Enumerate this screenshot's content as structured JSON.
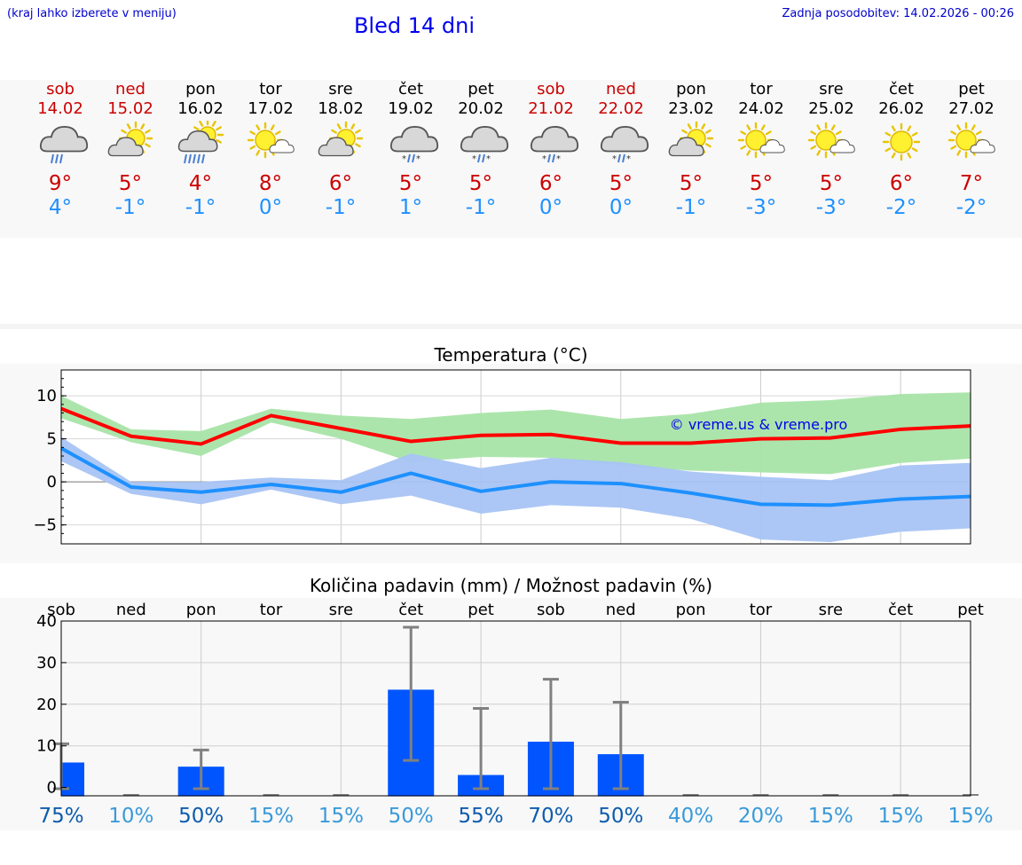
{
  "header": {
    "hint": "(kraj lahko izberete v meniju)",
    "title": "Bled 14 dni",
    "updated": "Zadnja posodobitev: 14.02.2026 - 00:26"
  },
  "days": [
    {
      "name": "sob",
      "date": "14.02",
      "weekend": true,
      "icon": "cloud-rain-icon",
      "tmax": "9°",
      "tmin": "4°"
    },
    {
      "name": "ned",
      "date": "15.02",
      "weekend": true,
      "icon": "sun-cloud-icon",
      "tmax": "5°",
      "tmin": "-1°"
    },
    {
      "name": "pon",
      "date": "16.02",
      "weekend": false,
      "icon": "sun-cloud-rain-icon",
      "tmax": "4°",
      "tmin": "-1°"
    },
    {
      "name": "tor",
      "date": "17.02",
      "weekend": false,
      "icon": "sun-small-cloud-icon",
      "tmax": "8°",
      "tmin": "0°"
    },
    {
      "name": "sre",
      "date": "18.02",
      "weekend": false,
      "icon": "sun-cloud-icon",
      "tmax": "6°",
      "tmin": "-1°"
    },
    {
      "name": "čet",
      "date": "19.02",
      "weekend": false,
      "icon": "cloud-sleet-icon",
      "tmax": "5°",
      "tmin": "1°"
    },
    {
      "name": "pet",
      "date": "20.02",
      "weekend": false,
      "icon": "cloud-sleet-icon",
      "tmax": "5°",
      "tmin": "-1°"
    },
    {
      "name": "sob",
      "date": "21.02",
      "weekend": true,
      "icon": "cloud-sleet-icon",
      "tmax": "6°",
      "tmin": "0°"
    },
    {
      "name": "ned",
      "date": "22.02",
      "weekend": true,
      "icon": "cloud-sleet-icon",
      "tmax": "5°",
      "tmin": "0°"
    },
    {
      "name": "pon",
      "date": "23.02",
      "weekend": false,
      "icon": "sun-cloud-icon",
      "tmax": "5°",
      "tmin": "-1°"
    },
    {
      "name": "tor",
      "date": "24.02",
      "weekend": false,
      "icon": "sun-small-cloud-icon",
      "tmax": "5°",
      "tmin": "-3°"
    },
    {
      "name": "sre",
      "date": "25.02",
      "weekend": false,
      "icon": "sun-small-cloud-icon",
      "tmax": "5°",
      "tmin": "-3°"
    },
    {
      "name": "čet",
      "date": "26.02",
      "weekend": false,
      "icon": "sun-icon",
      "tmax": "6°",
      "tmin": "-2°"
    },
    {
      "name": "pet",
      "date": "27.02",
      "weekend": false,
      "icon": "sun-small-cloud-icon",
      "tmax": "7°",
      "tmin": "-2°"
    }
  ],
  "colors": {
    "weekend": "#cc0000",
    "tmax": "#cc0000",
    "tmin": "#1e90ff",
    "max_line": "#ff0000",
    "max_band": "#a8e4a8",
    "min_line": "#1e90ff",
    "min_band": "#a8c4f4",
    "bar": "#0055ff",
    "error": "#808080",
    "prob_dark": "#0d5cad",
    "prob_light": "#3a9ad9"
  },
  "chart_data": [
    {
      "type": "line",
      "title": "Temperatura (°C)",
      "watermark": "© vreme.us & vreme.pro",
      "ylim": [
        -7.2,
        13
      ],
      "yticks": [
        10,
        5,
        0,
        -5
      ],
      "ytick_labels": [
        "10",
        "5",
        "0",
        "−5"
      ],
      "x": [
        0,
        1,
        2,
        3,
        4,
        5,
        6,
        7,
        8,
        9,
        10,
        11,
        12,
        13
      ],
      "series": [
        {
          "name": "max",
          "values": [
            8.5,
            5.3,
            4.4,
            7.7,
            6.2,
            4.7,
            5.4,
            5.5,
            4.5,
            4.5,
            5.0,
            5.1,
            6.1,
            6.5
          ],
          "band_high": [
            10.0,
            6.1,
            5.9,
            8.5,
            7.7,
            7.3,
            8.0,
            8.4,
            7.3,
            7.9,
            9.2,
            9.5,
            10.2,
            10.4
          ],
          "band_low": [
            7.4,
            4.6,
            3.0,
            6.9,
            5.0,
            2.3,
            2.9,
            2.8,
            1.9,
            1.3,
            1.1,
            0.9,
            2.2,
            2.7
          ]
        },
        {
          "name": "min",
          "values": [
            3.9,
            -0.6,
            -1.2,
            -0.3,
            -1.2,
            1.0,
            -1.1,
            0.0,
            -0.2,
            -1.3,
            -2.6,
            -2.7,
            -2.0,
            -1.7
          ],
          "band_high": [
            5.2,
            0.0,
            0.0,
            0.5,
            0.2,
            3.3,
            1.6,
            2.8,
            2.3,
            1.2,
            0.6,
            0.2,
            1.9,
            2.2
          ],
          "band_low": [
            2.4,
            -1.4,
            -2.6,
            -0.9,
            -2.6,
            -1.6,
            -3.7,
            -2.7,
            -3.0,
            -4.3,
            -6.7,
            -7.0,
            -5.8,
            -5.4
          ]
        }
      ]
    },
    {
      "type": "bar",
      "title": "Količina padavin (mm) / Možnost padavin (%)",
      "categories": [
        "sob",
        "ned",
        "pon",
        "tor",
        "sre",
        "čet",
        "pet",
        "sob",
        "ned",
        "pon",
        "tor",
        "sre",
        "čet",
        "pet"
      ],
      "ylim": [
        -2,
        40
      ],
      "yticks": [
        40,
        30,
        20,
        10,
        0
      ],
      "ytick_labels": [
        "40",
        "30",
        "20",
        "10",
        "0"
      ],
      "values": [
        6,
        0,
        5,
        0,
        0,
        23.5,
        3,
        11,
        8,
        0,
        0,
        0,
        0,
        0
      ],
      "err_low": [
        0,
        0,
        0,
        0,
        0,
        6.5,
        0,
        0,
        0,
        0,
        0,
        0,
        0,
        0
      ],
      "err_high": [
        10.5,
        0,
        9,
        0,
        0,
        38.5,
        19,
        26,
        20.5,
        0,
        0,
        0,
        0,
        0
      ],
      "probability": [
        "75%",
        "10%",
        "50%",
        "15%",
        "15%",
        "50%",
        "55%",
        "70%",
        "50%",
        "40%",
        "20%",
        "15%",
        "15%",
        "15%"
      ],
      "probability_dark": [
        true,
        false,
        true,
        false,
        false,
        false,
        true,
        true,
        true,
        false,
        false,
        false,
        false,
        false
      ]
    }
  ]
}
